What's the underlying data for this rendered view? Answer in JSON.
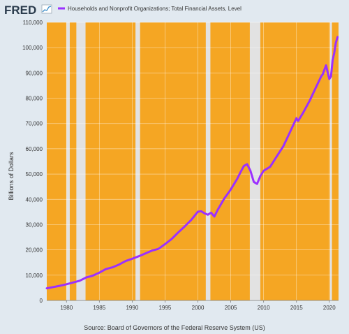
{
  "branding": {
    "logo_text": "FRED",
    "logo_icon": "line-chart-icon"
  },
  "chart_data": {
    "type": "line",
    "series": [
      {
        "name": "Households and Nonprofit Organizations; Total Financial Assets, Level",
        "color": "#9b30ff",
        "x": [
          1977,
          1978,
          1979,
          1980,
          1981,
          1982,
          1983,
          1984,
          1985,
          1986,
          1987,
          1988,
          1989,
          1990,
          1991,
          1992,
          1993,
          1994,
          1995,
          1996,
          1997,
          1998,
          1999,
          2000,
          2000.5,
          2001,
          2001.5,
          2002,
          2002.5,
          2003,
          2004,
          2005,
          2006,
          2006.5,
          2007,
          2007.5,
          2008,
          2008.5,
          2009,
          2009.5,
          2010,
          2011,
          2012,
          2013,
          2014,
          2015,
          2015.25,
          2016,
          2017,
          2018,
          2018.75,
          2019,
          2019.5,
          2020,
          2020.25,
          2020.5,
          2020.75,
          2021,
          2021.25
        ],
        "y": [
          4800,
          5300,
          5800,
          6400,
          7100,
          7800,
          9100,
          9800,
          11000,
          12400,
          13100,
          14200,
          15600,
          16500,
          17500,
          18600,
          19700,
          20400,
          22300,
          24300,
          26900,
          29300,
          31900,
          35100,
          35300,
          34500,
          33900,
          34700,
          33200,
          35800,
          40300,
          43900,
          48200,
          50800,
          53200,
          53900,
          51300,
          46900,
          46100,
          49200,
          51300,
          52900,
          57000,
          61000,
          66500,
          72100,
          71000,
          74200,
          79000,
          84500,
          88600,
          89500,
          93000,
          87600,
          88600,
          95000,
          98000,
          102000,
          104200
        ]
      }
    ],
    "recessions": [
      [
        1980.0,
        1980.5
      ],
      [
        1981.5,
        1982.9
      ],
      [
        1990.5,
        1991.2
      ],
      [
        2001.2,
        2001.9
      ],
      [
        2007.9,
        2009.5
      ],
      [
        2020.1,
        2020.4
      ]
    ],
    "xlim": [
      1977,
      2021.4
    ],
    "ylim": [
      0,
      110000
    ],
    "xticks": [
      1980,
      1985,
      1990,
      1995,
      2000,
      2005,
      2010,
      2015,
      2020
    ],
    "yticks": [
      0,
      10000,
      20000,
      30000,
      40000,
      50000,
      60000,
      70000,
      80000,
      90000,
      100000,
      110000
    ],
    "xtick_labels": [
      "1980",
      "1985",
      "1990",
      "1995",
      "2000",
      "2005",
      "2010",
      "2015",
      "2020"
    ],
    "ytick_labels": [
      "0",
      "10,000",
      "20,000",
      "30,000",
      "40,000",
      "50,000",
      "60,000",
      "70,000",
      "80,000",
      "90,000",
      "100,000",
      "110,000"
    ],
    "ylabel": "Billions of Dollars",
    "xlabel": "",
    "grid": true,
    "legend": "top-left",
    "colors": {
      "plot_background": "#f5a623",
      "recession_shading": "#e2e2e2",
      "line": "#9b30ff",
      "grid": "#ffffff",
      "page_background": "#e1e9f0"
    }
  },
  "footer": {
    "source_text": "Source: Board of Governors of the Federal Reserve System (US)"
  }
}
